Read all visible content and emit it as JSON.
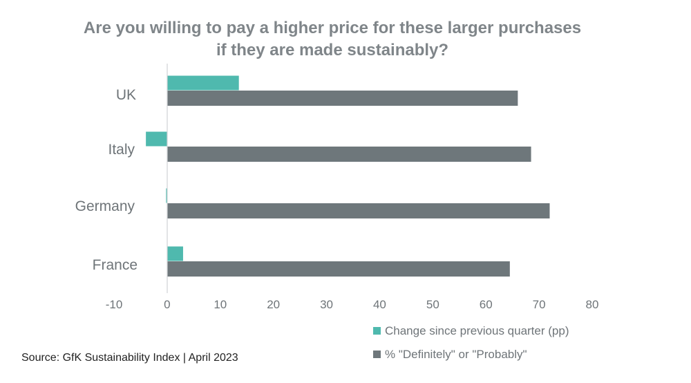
{
  "chart_data": {
    "type": "bar",
    "orientation": "horizontal",
    "title_lines": [
      "Are you willing to pay a higher price for these larger purchases",
      "if they are made sustainably?"
    ],
    "categories": [
      "UK",
      "Italy",
      "Germany",
      "France"
    ],
    "series": [
      {
        "name": "Change since previous quarter (pp)",
        "color": "#4fb9ae",
        "values": [
          13.5,
          -4,
          -0.2,
          3
        ]
      },
      {
        "name": "% \"Definitely\" or \"Probably\"",
        "color": "#6e777b",
        "values": [
          66,
          68.5,
          72,
          64.5
        ]
      }
    ],
    "xlim": [
      -10,
      80
    ],
    "xticks": [
      "-10",
      "0",
      "10",
      "20",
      "30",
      "40",
      "50",
      "60",
      "70",
      "80"
    ],
    "xlabel": "",
    "ylabel": "",
    "grid": false,
    "legend": "bottom-right"
  },
  "source": "Source: GfK Sustainability Index | April 2023"
}
